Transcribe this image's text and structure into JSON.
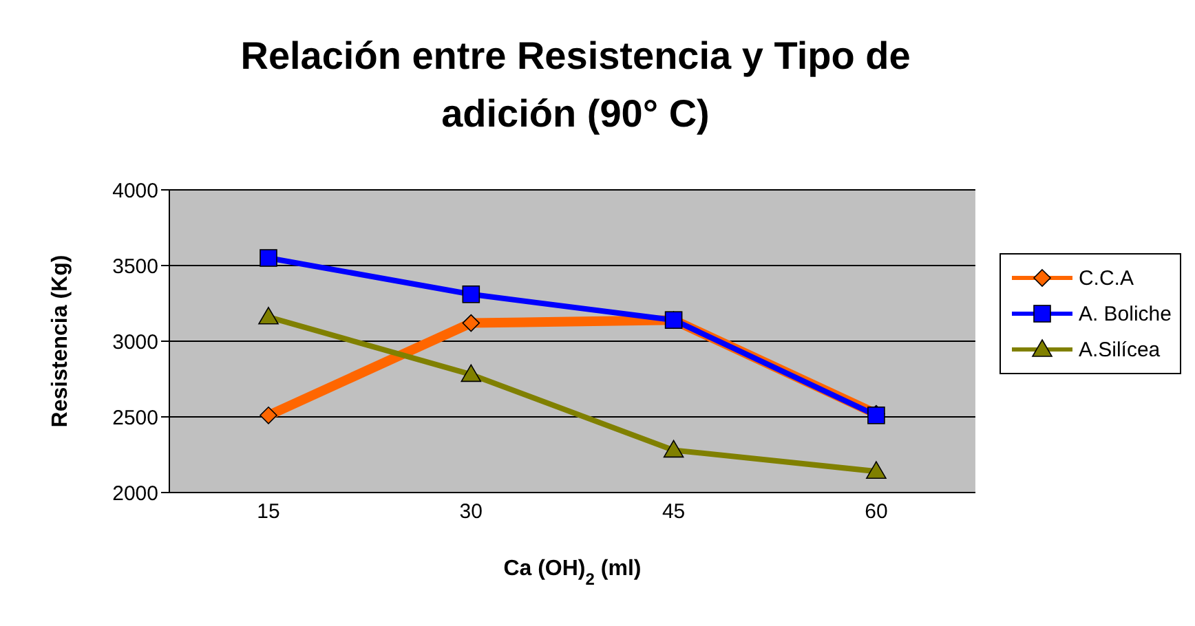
{
  "chart_data": {
    "type": "line",
    "title": "Relación entre Resistencia y Tipo de adición (90° C)",
    "xlabel": "Ca (OH)$_{2}$ (ml)",
    "ylabel": "Resistencia (Kg)",
    "categories": [
      "15",
      "30",
      "45",
      "60"
    ],
    "series": [
      {
        "name": "C.C.A",
        "color": "#ff6600",
        "marker": "diamond",
        "values": [
          2510,
          3120,
          3140,
          2520
        ]
      },
      {
        "name": "A. Boliche",
        "color": "#0000ff",
        "marker": "square",
        "values": [
          3550,
          3310,
          3140,
          2510
        ]
      },
      {
        "name": "A.Silícea",
        "color": "#808000",
        "marker": "triangle",
        "values": [
          3160,
          2780,
          2280,
          2140
        ]
      }
    ],
    "ylim": [
      2000,
      4000
    ],
    "yticks": [
      2000,
      2500,
      3000,
      3500,
      4000
    ],
    "grid": "y",
    "legend": "right"
  }
}
